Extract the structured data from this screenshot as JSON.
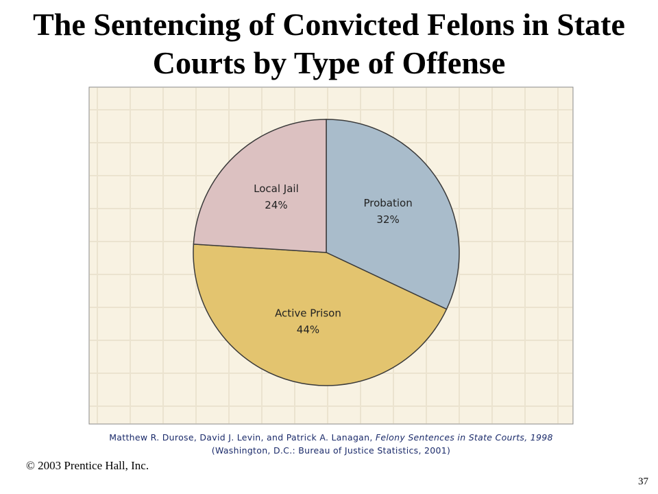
{
  "chart_data": {
    "type": "pie",
    "title": "The Sentencing of Convicted Felons in State Courts by Type of Offense",
    "categories": [
      "Probation",
      "Active Prison",
      "Local Jail"
    ],
    "values": [
      32,
      44,
      24
    ],
    "value_labels": [
      "32%",
      "44%",
      "24%"
    ],
    "colors": [
      "#a9bccb",
      "#e3c46f",
      "#dcc1c1"
    ]
  },
  "source": [
    "Matthew R. Durose, David J. Levin, and Patrick A. Lanagan, ",
    "Felony Sentences in State Courts, 1998",
    " (Washington, D.C.: Bureau of Justice Statistics, 2001)"
  ],
  "footer": "© 2003 Prentice Hall, Inc.",
  "page_number": "37"
}
